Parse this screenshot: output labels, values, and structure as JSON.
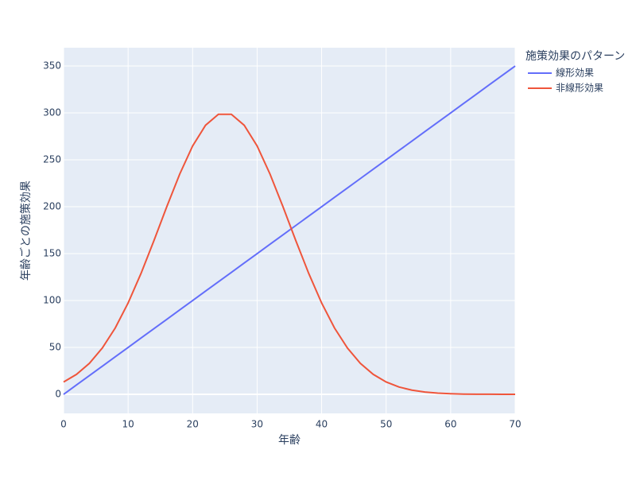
{
  "chart_data": {
    "type": "line",
    "x_label": "年齢",
    "y_label": "年齢ごとの施策効果",
    "legend_title": "施策効果のパターン",
    "x": [
      0,
      2,
      4,
      6,
      8,
      10,
      12,
      14,
      16,
      18,
      20,
      22,
      24,
      26,
      28,
      30,
      32,
      34,
      36,
      38,
      40,
      42,
      44,
      46,
      48,
      50,
      52,
      54,
      56,
      58,
      60,
      62,
      64,
      66,
      68,
      70
    ],
    "series": [
      {
        "name": "線形効果",
        "color": "#636efa",
        "values": [
          0,
          10,
          20,
          30,
          40,
          50,
          60,
          70,
          80,
          90,
          100,
          110,
          120,
          130,
          140,
          150,
          160,
          170,
          180,
          190,
          200,
          210,
          220,
          230,
          240,
          250,
          260,
          270,
          280,
          290,
          300,
          310,
          320,
          330,
          340,
          350
        ]
      },
      {
        "name": "非線形効果",
        "color": "#ef553b",
        "values": [
          13.2,
          21.3,
          33.1,
          49.4,
          70.7,
          97.4,
          128.9,
          163.8,
          200.1,
          234.8,
          264.8,
          286.8,
          298.5,
          298.5,
          286.8,
          264.8,
          234.8,
          200.1,
          163.8,
          128.9,
          97.4,
          70.7,
          49.4,
          33.1,
          21.3,
          13.2,
          7.8,
          4.5,
          2.5,
          1.3,
          0.7,
          0.3,
          0.1,
          0.1,
          0,
          0
        ]
      }
    ],
    "xlim": [
      0,
      70
    ],
    "xticks": [
      0,
      10,
      20,
      30,
      40,
      50,
      60,
      70
    ],
    "ylim": [
      -20.3,
      369.5
    ],
    "yticks": [
      0,
      50,
      100,
      150,
      200,
      250,
      300,
      350
    ],
    "grid": true,
    "legend": "right",
    "plot_background": "#e5ecf6"
  }
}
